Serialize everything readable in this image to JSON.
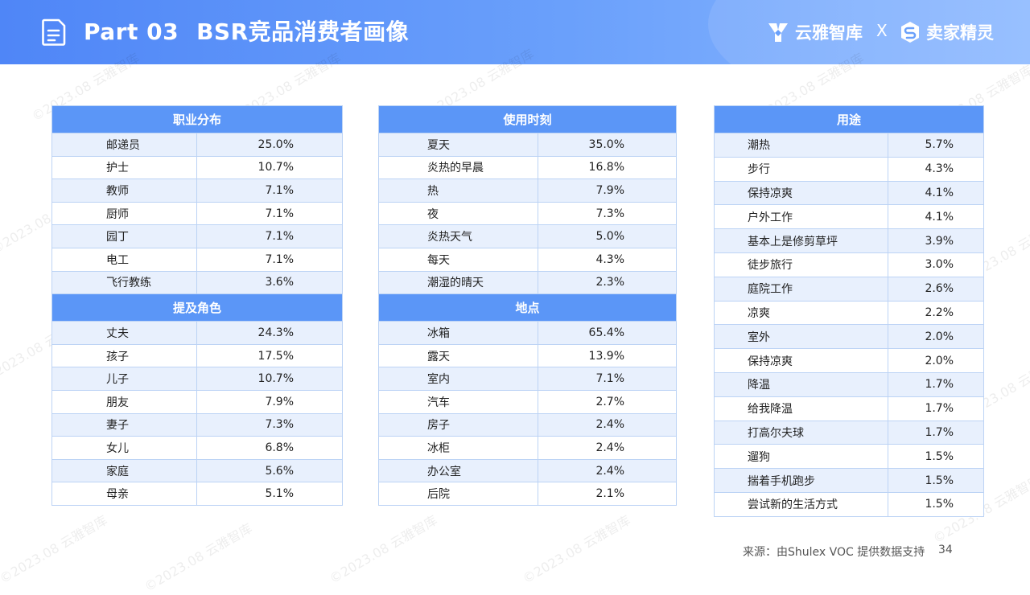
{
  "header": {
    "part": "Part 03",
    "title": "BSR竞品消费者画像",
    "brand_left": "云雅智库",
    "brand_sep": "X",
    "brand_right": "卖家精灵"
  },
  "watermark": "©2023.08 云雅智库",
  "occupation": {
    "title": "职业分布",
    "rows": [
      {
        "label": "邮递员",
        "value": "25.0%"
      },
      {
        "label": "护士",
        "value": "10.7%"
      },
      {
        "label": "教师",
        "value": "7.1%"
      },
      {
        "label": "厨师",
        "value": "7.1%"
      },
      {
        "label": "园丁",
        "value": "7.1%"
      },
      {
        "label": "电工",
        "value": "7.1%"
      },
      {
        "label": "飞行教练",
        "value": "3.6%"
      }
    ]
  },
  "roles": {
    "title": "提及角色",
    "rows": [
      {
        "label": "丈夫",
        "value": "24.3%"
      },
      {
        "label": "孩子",
        "value": "17.5%"
      },
      {
        "label": "儿子",
        "value": "10.7%"
      },
      {
        "label": "朋友",
        "value": "7.9%"
      },
      {
        "label": "妻子",
        "value": "7.3%"
      },
      {
        "label": "女儿",
        "value": "6.8%"
      },
      {
        "label": "家庭",
        "value": "5.6%"
      },
      {
        "label": "母亲",
        "value": "5.1%"
      }
    ]
  },
  "usage_time": {
    "title": "使用时刻",
    "rows": [
      {
        "label": "夏天",
        "value": "35.0%"
      },
      {
        "label": "炎热的早晨",
        "value": "16.8%"
      },
      {
        "label": "热",
        "value": "7.9%"
      },
      {
        "label": "夜",
        "value": "7.3%"
      },
      {
        "label": "炎热天气",
        "value": "5.0%"
      },
      {
        "label": "每天",
        "value": "4.3%"
      },
      {
        "label": "潮湿的晴天",
        "value": "2.3%"
      }
    ]
  },
  "location": {
    "title": "地点",
    "rows": [
      {
        "label": "冰箱",
        "value": "65.4%"
      },
      {
        "label": "露天",
        "value": "13.9%"
      },
      {
        "label": "室内",
        "value": "7.1%"
      },
      {
        "label": "汽车",
        "value": "2.7%"
      },
      {
        "label": "房子",
        "value": "2.4%"
      },
      {
        "label": "冰柜",
        "value": "2.4%"
      },
      {
        "label": "办公室",
        "value": "2.4%"
      },
      {
        "label": "后院",
        "value": "2.1%"
      }
    ]
  },
  "purpose": {
    "title": "用途",
    "rows": [
      {
        "label": "潮热",
        "value": "5.7%"
      },
      {
        "label": "步行",
        "value": "4.3%"
      },
      {
        "label": "保持凉爽",
        "value": "4.1%"
      },
      {
        "label": "户外工作",
        "value": "4.1%"
      },
      {
        "label": "基本上是修剪草坪",
        "value": "3.9%"
      },
      {
        "label": "徒步旅行",
        "value": "3.0%"
      },
      {
        "label": "庭院工作",
        "value": "2.6%"
      },
      {
        "label": "凉爽",
        "value": "2.2%"
      },
      {
        "label": "室外",
        "value": "2.0%"
      },
      {
        "label": "保持凉爽",
        "value": "2.0%"
      },
      {
        "label": "降温",
        "value": "1.7%"
      },
      {
        "label": "给我降温",
        "value": "1.7%"
      },
      {
        "label": "打高尔夫球",
        "value": "1.7%"
      },
      {
        "label": "遛狗",
        "value": "1.5%"
      },
      {
        "label": "揣着手机跑步",
        "value": "1.5%"
      },
      {
        "label": "尝试新的生活方式",
        "value": "1.5%"
      }
    ]
  },
  "footer": {
    "source": "来源：由Shulex VOC 提供数据支持",
    "page": "34"
  }
}
